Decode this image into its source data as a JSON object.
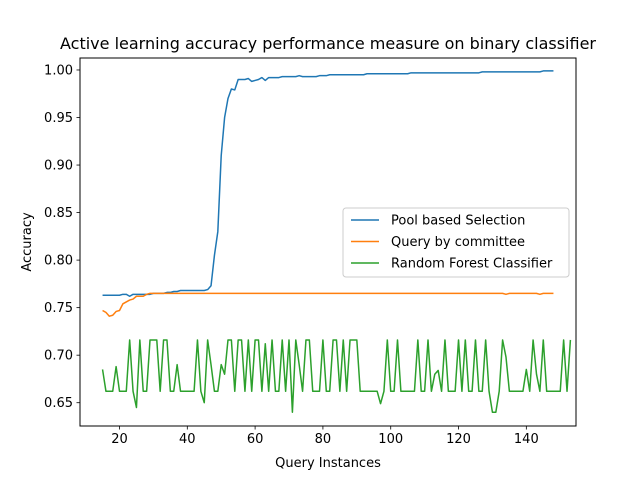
{
  "chart_data": {
    "type": "line",
    "title": "Active learning accuracy performance measure on binary classifier",
    "xlabel": "Query Instances",
    "ylabel": "Accuracy",
    "xlim": [
      8.35,
      154.65
    ],
    "ylim": [
      0.6255,
      1.0126
    ],
    "xticks": [
      20,
      40,
      60,
      80,
      100,
      120,
      140
    ],
    "yticks": [
      0.65,
      0.7,
      0.75,
      0.8,
      0.85,
      0.9,
      0.95,
      1.0
    ],
    "xtick_labels": [
      "20",
      "40",
      "60",
      "80",
      "100",
      "120",
      "140"
    ],
    "ytick_labels": [
      "0.65",
      "0.70",
      "0.75",
      "0.80",
      "0.85",
      "0.90",
      "0.95",
      "1.00"
    ],
    "grid": false,
    "legend_position": "center-right",
    "x_start": 15,
    "x_end": 148,
    "series": [
      {
        "name": "Pool based Selection",
        "color": "#1f77b4",
        "values": [
          0.763,
          0.763,
          0.763,
          0.763,
          0.763,
          0.763,
          0.764,
          0.764,
          0.762,
          0.764,
          0.764,
          0.764,
          0.764,
          0.764,
          0.764,
          0.765,
          0.765,
          0.765,
          0.765,
          0.766,
          0.766,
          0.767,
          0.767,
          0.768,
          0.768,
          0.768,
          0.768,
          0.768,
          0.768,
          0.768,
          0.768,
          0.769,
          0.773,
          0.805,
          0.83,
          0.91,
          0.95,
          0.97,
          0.98,
          0.979,
          0.99,
          0.99,
          0.99,
          0.991,
          0.988,
          0.989,
          0.99,
          0.992,
          0.989,
          0.992,
          0.992,
          0.992,
          0.992,
          0.993,
          0.993,
          0.993,
          0.993,
          0.993,
          0.994,
          0.993,
          0.993,
          0.993,
          0.993,
          0.993,
          0.994,
          0.994,
          0.994,
          0.995,
          0.995,
          0.995,
          0.995,
          0.995,
          0.995,
          0.995,
          0.995,
          0.995,
          0.995,
          0.995,
          0.996,
          0.996,
          0.996,
          0.996,
          0.996,
          0.996,
          0.996,
          0.996,
          0.996,
          0.996,
          0.996,
          0.996,
          0.996,
          0.997,
          0.997,
          0.997,
          0.997,
          0.997,
          0.997,
          0.997,
          0.997,
          0.997,
          0.997,
          0.997,
          0.997,
          0.997,
          0.997,
          0.997,
          0.997,
          0.997,
          0.997,
          0.997,
          0.997,
          0.997,
          0.998,
          0.998,
          0.998,
          0.998,
          0.998,
          0.998,
          0.998,
          0.998,
          0.998,
          0.998,
          0.998,
          0.998,
          0.998,
          0.998,
          0.998,
          0.998,
          0.998,
          0.998,
          0.999,
          0.999,
          0.999,
          0.999
        ]
      },
      {
        "name": "Query by committee",
        "color": "#ff7f0e",
        "values": [
          0.747,
          0.745,
          0.741,
          0.742,
          0.746,
          0.747,
          0.754,
          0.756,
          0.758,
          0.759,
          0.762,
          0.762,
          0.762,
          0.764,
          0.765,
          0.765,
          0.765,
          0.765,
          0.765,
          0.765,
          0.765,
          0.765,
          0.765,
          0.765,
          0.765,
          0.765,
          0.765,
          0.765,
          0.765,
          0.765,
          0.765,
          0.765,
          0.765,
          0.765,
          0.765,
          0.765,
          0.765,
          0.765,
          0.765,
          0.765,
          0.765,
          0.765,
          0.765,
          0.765,
          0.765,
          0.765,
          0.765,
          0.765,
          0.765,
          0.765,
          0.765,
          0.765,
          0.765,
          0.765,
          0.765,
          0.765,
          0.765,
          0.765,
          0.765,
          0.765,
          0.765,
          0.765,
          0.765,
          0.765,
          0.765,
          0.765,
          0.765,
          0.765,
          0.765,
          0.765,
          0.765,
          0.765,
          0.765,
          0.765,
          0.765,
          0.765,
          0.765,
          0.765,
          0.765,
          0.765,
          0.765,
          0.765,
          0.765,
          0.765,
          0.765,
          0.765,
          0.765,
          0.765,
          0.765,
          0.765,
          0.765,
          0.765,
          0.765,
          0.765,
          0.765,
          0.765,
          0.765,
          0.765,
          0.765,
          0.765,
          0.765,
          0.765,
          0.765,
          0.765,
          0.765,
          0.765,
          0.765,
          0.765,
          0.765,
          0.765,
          0.765,
          0.765,
          0.765,
          0.765,
          0.765,
          0.765,
          0.765,
          0.765,
          0.765,
          0.764,
          0.765,
          0.765,
          0.765,
          0.765,
          0.765,
          0.765,
          0.765,
          0.765,
          0.765,
          0.764,
          0.765,
          0.765,
          0.765,
          0.765
        ]
      },
      {
        "name": "Random Forest Classifier",
        "color": "#2ca02c",
        "values": [
          0.685,
          0.662,
          0.662,
          0.662,
          0.688,
          0.662,
          0.662,
          0.662,
          0.716,
          0.662,
          0.645,
          0.716,
          0.662,
          0.662,
          0.716,
          0.716,
          0.716,
          0.662,
          0.716,
          0.716,
          0.662,
          0.662,
          0.69,
          0.662,
          0.662,
          0.662,
          0.662,
          0.662,
          0.716,
          0.662,
          0.65,
          0.716,
          0.69,
          0.662,
          0.662,
          0.69,
          0.68,
          0.716,
          0.716,
          0.662,
          0.716,
          0.716,
          0.662,
          0.716,
          0.662,
          0.716,
          0.716,
          0.662,
          0.712,
          0.662,
          0.716,
          0.662,
          0.662,
          0.716,
          0.662,
          0.716,
          0.64,
          0.716,
          0.69,
          0.662,
          0.716,
          0.716,
          0.662,
          0.662,
          0.662,
          0.716,
          0.662,
          0.662,
          0.716,
          0.716,
          0.662,
          0.716,
          0.662,
          0.716,
          0.716,
          0.716,
          0.662,
          0.662,
          0.662,
          0.662,
          0.662,
          0.662,
          0.649,
          0.662,
          0.716,
          0.662,
          0.662,
          0.716,
          0.662,
          0.662,
          0.662,
          0.662,
          0.662,
          0.716,
          0.662,
          0.662,
          0.716,
          0.662,
          0.68,
          0.684,
          0.662,
          0.716,
          0.662,
          0.662,
          0.662,
          0.716,
          0.662,
          0.716,
          0.662,
          0.662,
          0.716,
          0.662,
          0.662,
          0.716,
          0.662,
          0.64,
          0.64,
          0.662,
          0.716,
          0.698,
          0.662,
          0.662,
          0.662,
          0.662,
          0.662,
          0.685,
          0.662,
          0.716,
          0.68,
          0.662,
          0.716,
          0.662,
          0.662,
          0.662,
          0.662,
          0.662,
          0.716,
          0.662,
          0.716
        ]
      }
    ]
  }
}
